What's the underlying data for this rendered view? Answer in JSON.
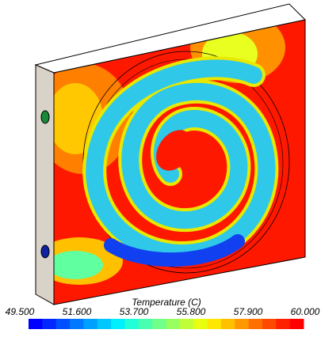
{
  "colorbar": {
    "title": "Temperature (C)",
    "range": [
      49.5,
      60
    ],
    "ticks": [
      {
        "value": 49.5,
        "label": "49.500"
      },
      {
        "value": 51.6,
        "label": "51.600"
      },
      {
        "value": 53.7,
        "label": "53.700"
      },
      {
        "value": 55.8,
        "label": "55.800"
      },
      {
        "value": 57.9,
        "label": "57.900"
      },
      {
        "value": 60,
        "label": "60.000"
      }
    ],
    "colors": [
      "#0000ff",
      "#0028ff",
      "#0050ff",
      "#0078ff",
      "#00a0ff",
      "#00c8ff",
      "#00f0ff",
      "#20ffd8",
      "#48ffb0",
      "#70ff88",
      "#98ff60",
      "#c0ff38",
      "#e8ff10",
      "#ffe800",
      "#ffc000",
      "#ff9800",
      "#ff7000",
      "#ff4800",
      "#ff2000",
      "#ff0000"
    ]
  }
}
